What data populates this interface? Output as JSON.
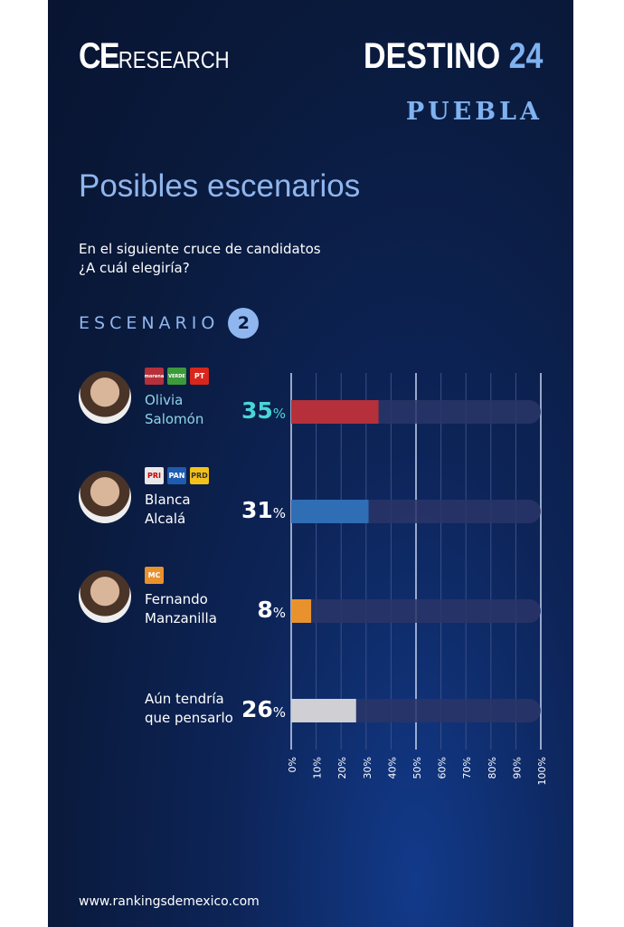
{
  "header": {
    "brand_left_main": "CE",
    "brand_left_sub": "RESEARCH",
    "brand_right_main": "DESTINO",
    "brand_right_num": "24",
    "state": "PUEBLA"
  },
  "title": "Posibles escenarios",
  "question_line1": "En el siguiente cruce de candidatos",
  "question_line2": "¿A cuál elegiría?",
  "scenario_label": "ESCENARIO",
  "scenario_number": "2",
  "candidates": [
    {
      "name1": "Olivia",
      "name2": "Salomón",
      "pct": "35",
      "unit": "%",
      "parties": [
        "morena",
        "VERDE",
        "PT"
      ],
      "name_color": "#8fd4e6",
      "pct_color": "#49d6d6"
    },
    {
      "name1": "Blanca",
      "name2": "Alcalá",
      "pct": "31",
      "unit": "%",
      "parties": [
        "PRI",
        "PAN",
        "PRD"
      ]
    },
    {
      "name1": "Fernando",
      "name2": "Manzanilla",
      "pct": "8",
      "unit": "%",
      "parties": [
        "MC"
      ]
    },
    {
      "name1": "Aún tendría",
      "name2": "que pensarlo",
      "pct": "26",
      "unit": "%",
      "parties": []
    }
  ],
  "chart_data": {
    "type": "bar",
    "orientation": "horizontal",
    "categories": [
      "Olivia Salomón",
      "Blanca Alcalá",
      "Fernando Manzanilla",
      "Aún tendría que pensarlo"
    ],
    "values": [
      35,
      31,
      8,
      26
    ],
    "colors": [
      "#b5303a",
      "#2f6db5",
      "#e8922e",
      "#cfcfd4"
    ],
    "xlim": [
      0,
      100
    ],
    "ticks": [
      "0%",
      "10%",
      "20%",
      "30%",
      "40%",
      "50%",
      "60%",
      "70%",
      "80%",
      "90%",
      "100%"
    ],
    "grid": true
  },
  "footer": "www.rankingsdemexico.com"
}
